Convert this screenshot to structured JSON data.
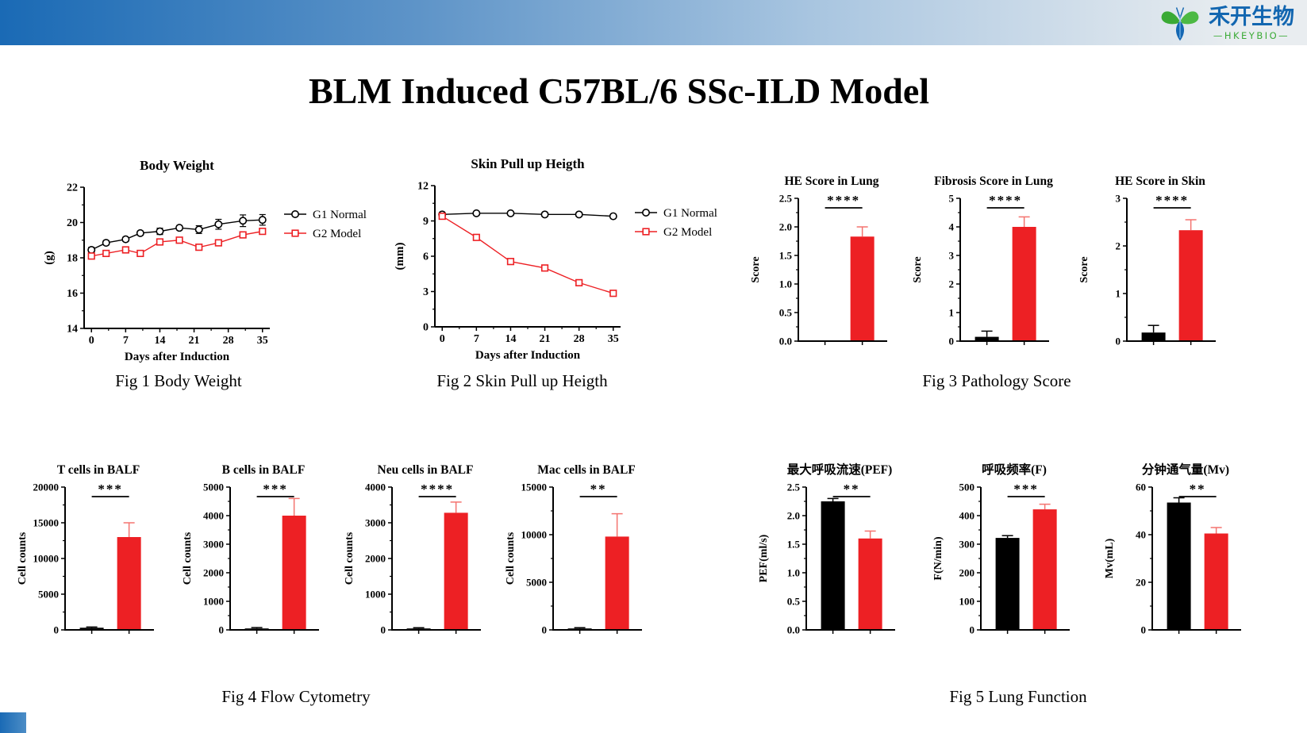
{
  "page": {
    "title": "BLM Induced C57BL/6 SSc-ILD Model",
    "logo": {
      "company_cn": "禾开生物",
      "company_en": "—HKEYBIO—"
    },
    "captions": {
      "fig1": "Fig 1 Body Weight",
      "fig2": "Fig 2 Skin Pull up Heigth",
      "fig3": "Fig 3 Pathology Score",
      "fig4": "Fig 4 Flow Cytometry",
      "fig5": "Fig 5 Lung Function"
    },
    "colors": {
      "normal_black": "#000000",
      "model_red": "#ed2024",
      "error_red": "#f4736f",
      "accent_blue": "#1a6ab5",
      "logo_blue": "#1266b0",
      "logo_green": "#3aaa35"
    }
  },
  "chart_data": [
    {
      "id": "body_weight",
      "type": "line",
      "title": "Body Weight",
      "xlabel": "Days after Induction",
      "ylabel": "(g)",
      "xlim": [
        -1.5,
        36.5
      ],
      "ylim": [
        14,
        22
      ],
      "xticks": [
        0,
        7,
        14,
        21,
        28,
        35
      ],
      "yticks": [
        14,
        16,
        18,
        20,
        22
      ],
      "legend_position": "right",
      "series": [
        {
          "name": "G1 Normal",
          "color": "#000000",
          "marker": "circle",
          "x": [
            0,
            3,
            7,
            10,
            14,
            18,
            22,
            26,
            31,
            35
          ],
          "y": [
            18.45,
            18.85,
            19.05,
            19.4,
            19.5,
            19.7,
            19.6,
            19.9,
            20.1,
            20.15
          ],
          "err": [
            0.15,
            0.12,
            0.12,
            0.12,
            0.18,
            0.12,
            0.22,
            0.28,
            0.33,
            0.3
          ]
        },
        {
          "name": "G2 Model",
          "color": "#ed2024",
          "marker": "square",
          "x": [
            0,
            3,
            7,
            10,
            14,
            18,
            22,
            26,
            31,
            35
          ],
          "y": [
            18.1,
            18.25,
            18.45,
            18.25,
            18.9,
            19.0,
            18.6,
            18.85,
            19.3,
            19.5
          ],
          "err": [
            0.12,
            0.1,
            0.1,
            0.14,
            0.12,
            0.1,
            0.12,
            0.1,
            0.1,
            0.12
          ]
        }
      ]
    },
    {
      "id": "skin_pull_up",
      "type": "line",
      "title": "Skin Pull up Heigth",
      "xlabel": "Days after Induction",
      "ylabel": "(mm)",
      "xlim": [
        -1.5,
        36.5
      ],
      "ylim": [
        0,
        12
      ],
      "xticks": [
        0,
        7,
        14,
        21,
        28,
        35
      ],
      "yticks": [
        0,
        3,
        6,
        9,
        12
      ],
      "legend_position": "right",
      "series": [
        {
          "name": "G1 Normal",
          "color": "#000000",
          "marker": "circle",
          "x": [
            0,
            7,
            14,
            21,
            28,
            35
          ],
          "y": [
            9.55,
            9.65,
            9.65,
            9.55,
            9.55,
            9.4
          ],
          "err": [
            0,
            0,
            0,
            0,
            0,
            0
          ]
        },
        {
          "name": "G2 Model",
          "color": "#ed2024",
          "marker": "square",
          "x": [
            0,
            7,
            14,
            21,
            28,
            35
          ],
          "y": [
            9.4,
            7.6,
            5.55,
            5.0,
            3.75,
            2.85
          ],
          "err": [
            0,
            0,
            0,
            0,
            0,
            0
          ]
        }
      ]
    },
    {
      "id": "he_score_lung",
      "type": "bar",
      "title": "HE Score in Lung",
      "ylabel": "Score",
      "ylim": [
        0,
        2.5
      ],
      "yticks": [
        0,
        0.5,
        1.0,
        1.5,
        2.0,
        2.5
      ],
      "ytick_decimals": 1,
      "groups": [
        "G1 Normal",
        "G2 Model"
      ],
      "values": [
        0,
        1.83
      ],
      "errors": [
        0,
        0.17
      ],
      "sig": "****"
    },
    {
      "id": "fibrosis_score_lung",
      "type": "bar",
      "title": "Fibrosis Score in Lung",
      "ylabel": "Score",
      "ylim": [
        0,
        5
      ],
      "yticks": [
        0,
        1,
        2,
        3,
        4,
        5
      ],
      "groups": [
        "G1 Normal",
        "G2 Model"
      ],
      "values": [
        0.15,
        4.0
      ],
      "errors": [
        0.2,
        0.35
      ],
      "sig": "****"
    },
    {
      "id": "he_score_skin",
      "type": "bar",
      "title": "HE Score in Skin",
      "ylabel": "Score",
      "ylim": [
        0,
        3
      ],
      "yticks": [
        0,
        1,
        2,
        3
      ],
      "groups": [
        "G1 Normal",
        "G2 Model"
      ],
      "values": [
        0.18,
        2.33
      ],
      "errors": [
        0.15,
        0.22
      ],
      "sig": "****"
    },
    {
      "id": "t_cells_balf",
      "type": "bar",
      "title": "T cells in BALF",
      "ylabel": "Cell counts",
      "ylim": [
        0,
        20000
      ],
      "yticks": [
        0,
        5000,
        10000,
        15000,
        20000
      ],
      "groups": [
        "G1 Normal",
        "G2 Model"
      ],
      "values": [
        300,
        13000
      ],
      "errors": [
        100,
        2000
      ],
      "sig": "***"
    },
    {
      "id": "b_cells_balf",
      "type": "bar",
      "title": "B cells in BALF",
      "ylabel": "Cell counts",
      "ylim": [
        0,
        5000
      ],
      "yticks": [
        0,
        1000,
        2000,
        3000,
        4000,
        5000
      ],
      "groups": [
        "G1 Normal",
        "G2 Model"
      ],
      "values": [
        50,
        4000
      ],
      "errors": [
        30,
        600
      ],
      "sig": "***"
    },
    {
      "id": "neu_cells_balf",
      "type": "bar",
      "title": "Neu cells in BALF",
      "ylabel": "Cell counts",
      "ylim": [
        0,
        4000
      ],
      "yticks": [
        0,
        1000,
        2000,
        3000,
        4000
      ],
      "groups": [
        "G1 Normal",
        "G2 Model"
      ],
      "values": [
        40,
        3280
      ],
      "errors": [
        20,
        300
      ],
      "sig": "****"
    },
    {
      "id": "mac_cells_balf",
      "type": "bar",
      "title": "Mac cells in BALF",
      "ylabel": "Cell counts",
      "ylim": [
        0,
        15000
      ],
      "yticks": [
        0,
        5000,
        10000,
        15000
      ],
      "groups": [
        "G1 Normal",
        "G2 Model"
      ],
      "values": [
        150,
        9800
      ],
      "errors": [
        80,
        2400
      ],
      "sig": "**"
    },
    {
      "id": "pef",
      "type": "bar",
      "title": "最大呼吸流速(PEF)",
      "ylabel": "PEF(ml/s)",
      "ylim": [
        0,
        2.5
      ],
      "yticks": [
        0,
        0.5,
        1.0,
        1.5,
        2.0,
        2.5
      ],
      "ytick_decimals": 1,
      "groups": [
        "G1 Normal",
        "G2 Model"
      ],
      "values": [
        2.25,
        1.6
      ],
      "errors": [
        0.05,
        0.13
      ],
      "sig": "**"
    },
    {
      "id": "respiratory_rate",
      "type": "bar",
      "title": "呼吸频率(F)",
      "ylabel": "F(N/min)",
      "ylim": [
        0,
        500
      ],
      "yticks": [
        0,
        100,
        200,
        300,
        400,
        500
      ],
      "groups": [
        "G1 Normal",
        "G2 Model"
      ],
      "values": [
        322,
        422
      ],
      "errors": [
        8,
        18
      ],
      "sig": "***"
    },
    {
      "id": "minute_ventilation",
      "type": "bar",
      "title": "分钟通气量(Mv)",
      "ylabel": "Mv(mL)",
      "ylim": [
        0,
        60
      ],
      "yticks": [
        0,
        20,
        40,
        60
      ],
      "groups": [
        "G1 Normal",
        "G2 Model"
      ],
      "values": [
        53.5,
        40.5
      ],
      "errors": [
        2,
        2.5
      ],
      "sig": "**"
    }
  ]
}
